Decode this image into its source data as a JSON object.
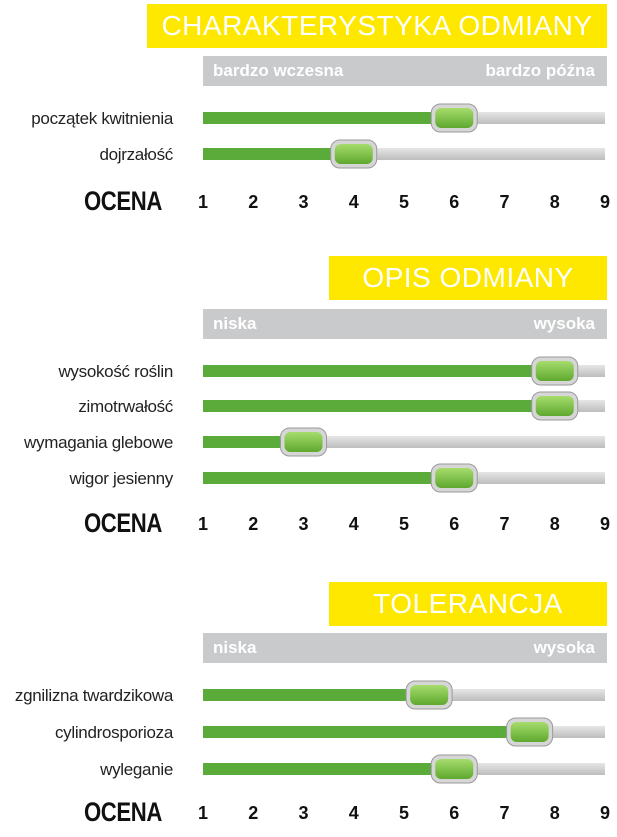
{
  "scale_ticks": [
    "1",
    "2",
    "3",
    "4",
    "5",
    "6",
    "7",
    "8",
    "9"
  ],
  "ocena_label": "OCENA",
  "colors": {
    "accent": "#ffe800",
    "bar_fill": "#5aab3a",
    "bar_track": "#cfcfcf",
    "scale_bar": "#c9cacc",
    "knob": "#86c84a"
  },
  "chart_data": [
    {
      "type": "bar",
      "title": "CHARAKTERYSTYKA ODMIANY",
      "scale_min_label": "bardzo wczesna",
      "scale_max_label": "bardzo późna",
      "xlim": [
        1,
        9
      ],
      "categories": [
        "początek kwitnienia",
        "dojrzałość"
      ],
      "values": [
        6,
        4
      ]
    },
    {
      "type": "bar",
      "title": "OPIS ODMIANY",
      "scale_min_label": "niska",
      "scale_max_label": "wysoka",
      "xlim": [
        1,
        9
      ],
      "categories": [
        "wysokość roślin",
        "zimotrwałość",
        "wymagania glebowe",
        "wigor jesienny"
      ],
      "values": [
        8,
        8,
        3,
        6
      ]
    },
    {
      "type": "bar",
      "title": "TOLERANCJA",
      "scale_min_label": "niska",
      "scale_max_label": "wysoka",
      "xlim": [
        1,
        9
      ],
      "categories": [
        "zgnilizna twardzikowa",
        "cylindrosporioza",
        "wyleganie"
      ],
      "values": [
        5.5,
        7.5,
        6
      ]
    }
  ]
}
